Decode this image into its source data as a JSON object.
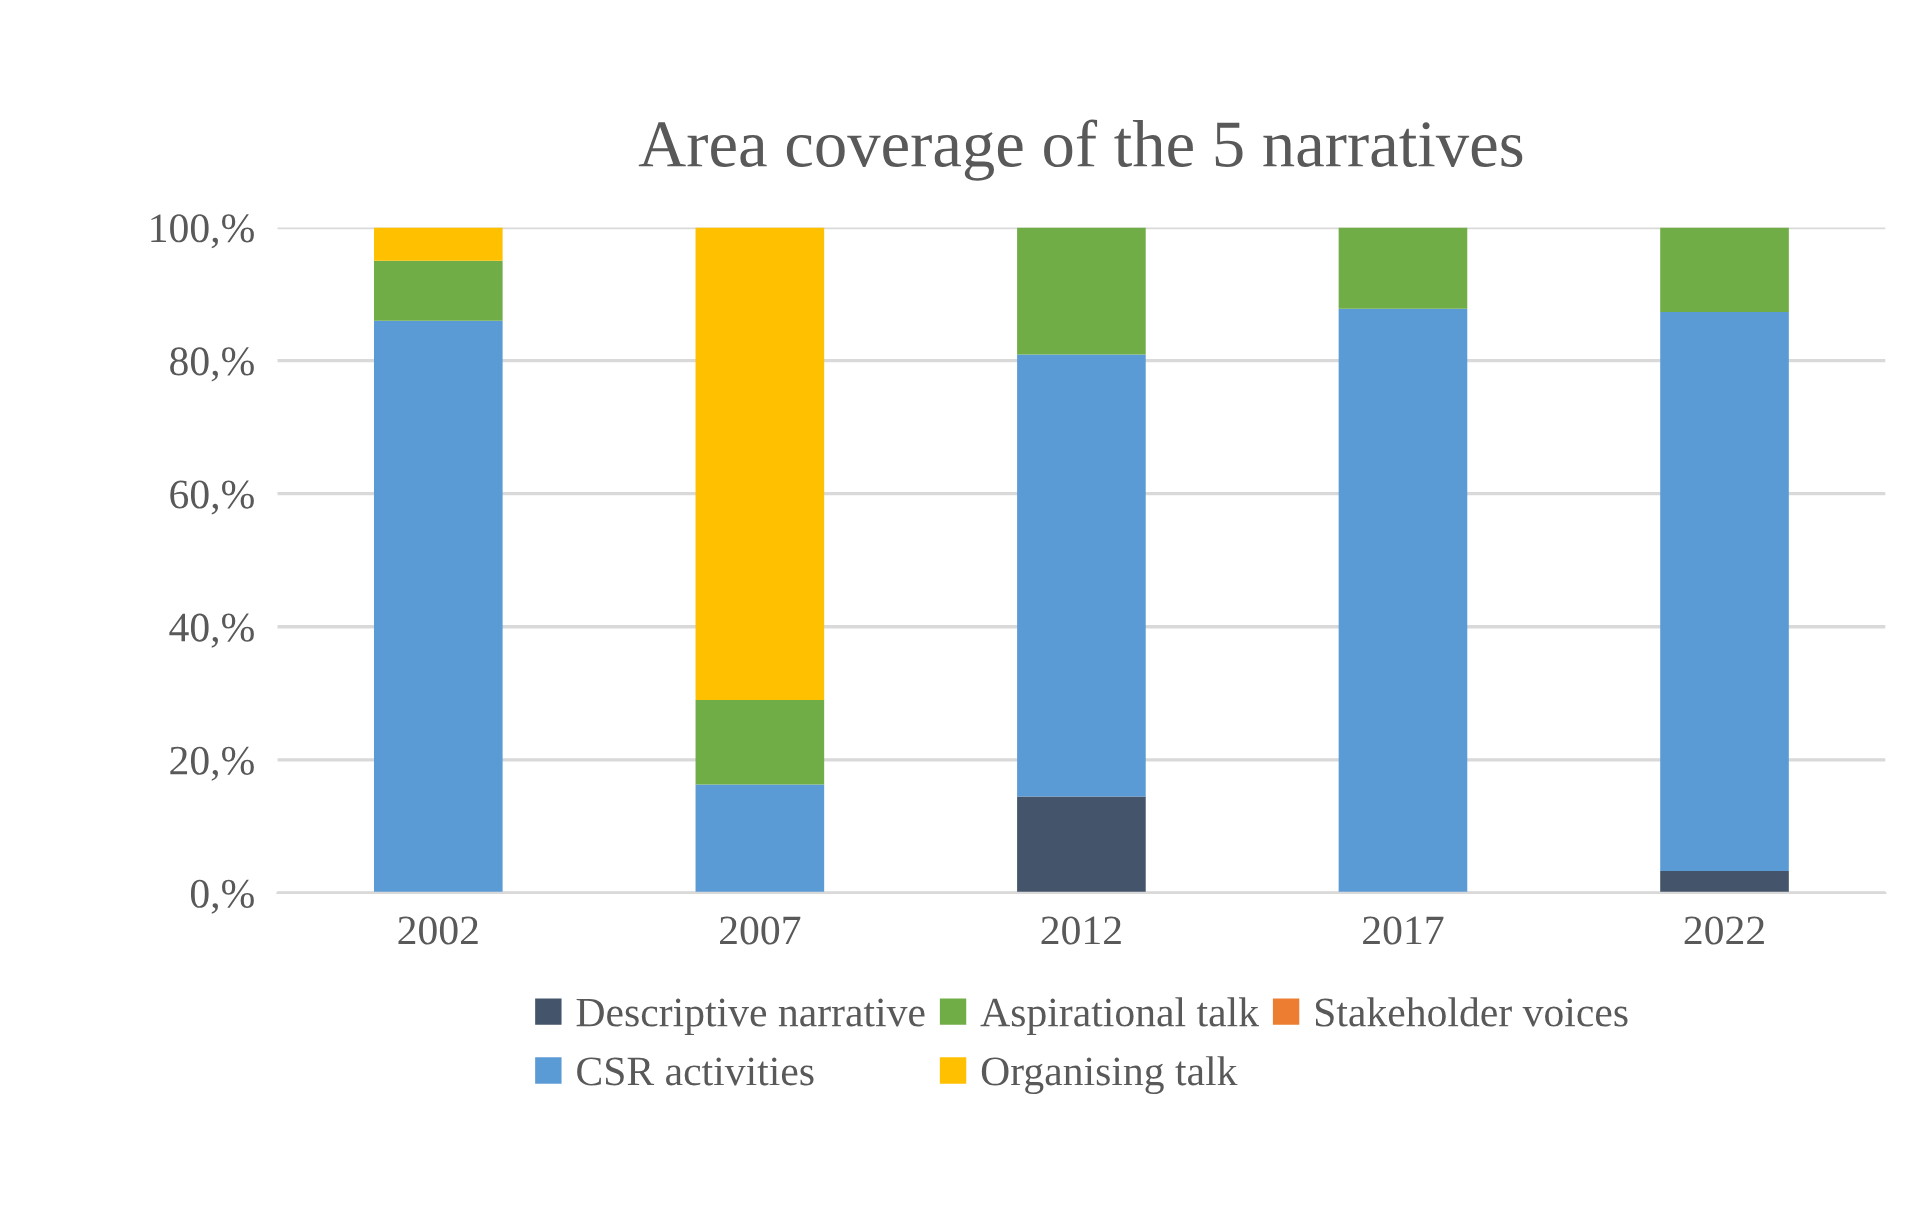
{
  "chart_data": {
    "type": "bar",
    "title": "Area coverage of the 5 narratives",
    "categories": [
      "2002",
      "2007",
      "2012",
      "2017",
      "2022"
    ],
    "stacked": true,
    "series": [
      {
        "name": "Descriptive narrative",
        "color": "#44546a",
        "values": [
          0,
          0,
          14.5,
          0,
          3.3
        ]
      },
      {
        "name": "CSR activities",
        "color": "#5b9bd5",
        "values": [
          86,
          16.3,
          66.4,
          87.8,
          84
        ]
      },
      {
        "name": "Aspirational talk",
        "color": "#70ad47",
        "values": [
          9,
          12.7,
          19.1,
          12.2,
          12.7
        ]
      },
      {
        "name": "Organising talk",
        "color": "#ffc000",
        "values": [
          5,
          71,
          0,
          0,
          0
        ]
      },
      {
        "name": "Stakeholder voices",
        "color": "#ed7d31",
        "values": [
          0,
          0,
          0,
          0,
          0
        ]
      }
    ],
    "ylim": [
      0,
      100
    ],
    "yticks": [
      {
        "value": 0,
        "label": "0,%"
      },
      {
        "value": 20,
        "label": "20,%"
      },
      {
        "value": 40,
        "label": "40,%"
      },
      {
        "value": 60,
        "label": "60,%"
      },
      {
        "value": 80,
        "label": "80,%"
      },
      {
        "value": 100,
        "label": "100,%"
      }
    ],
    "grid": "y",
    "legend": "bottom"
  }
}
